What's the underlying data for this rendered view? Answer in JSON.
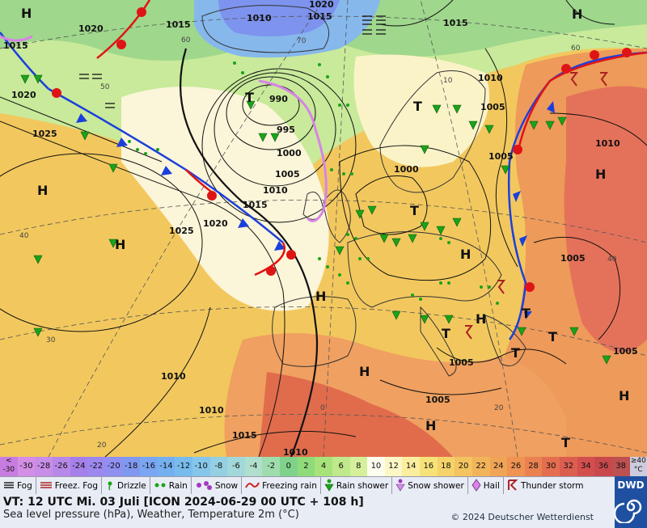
{
  "map": {
    "isobar_labels": [
      "1020",
      "1015",
      "1010",
      "1020",
      "1015",
      "1015",
      "990",
      "995",
      "1000",
      "1005",
      "1010",
      "1015",
      "1020",
      "1025",
      "1025",
      "1020",
      "1015",
      "1010",
      "1005",
      "1000",
      "1005",
      "1010",
      "1005",
      "1005",
      "1005",
      "1010",
      "1010",
      "1015",
      "1010",
      "1005"
    ],
    "pressure_centers": [
      "H",
      "T",
      "T",
      "H",
      "H",
      "H",
      "H",
      "T",
      "H",
      "H",
      "H",
      "T",
      "H",
      "T",
      "T",
      "T",
      "H",
      "T",
      "H"
    ],
    "grid_labels": [
      "60",
      "40",
      "30",
      "20",
      "0",
      "70",
      "50",
      "40",
      "60",
      "20",
      "10"
    ]
  },
  "scale": {
    "cells": [
      "<\n-30",
      "-30",
      "-28",
      "-26",
      "-24",
      "-22",
      "-20",
      "-18",
      "-16",
      "-14",
      "-12",
      "-10",
      "-8",
      "-6",
      "-4",
      "-2",
      "0",
      "2",
      "4",
      "6",
      "8",
      "10",
      "12",
      "14",
      "16",
      "18",
      "20",
      "22",
      "24",
      "26",
      "28",
      "30",
      "32",
      "34",
      "36",
      "38",
      "≥40\n°C"
    ],
    "colors": [
      "#c77de0",
      "#d48ee6",
      "#c88de8",
      "#b888e8",
      "#a680ea",
      "#9c88ef",
      "#8f90f2",
      "#8099f0",
      "#7aa6f2",
      "#74b0f0",
      "#78bcee",
      "#86c6ea",
      "#94cfe2",
      "#a3d8da",
      "#b0e0cd",
      "#9fdcae",
      "#7fd28a",
      "#8fdb7a",
      "#a7e37a",
      "#bfe98a",
      "#d5ef9b",
      "#fffff0",
      "#fdf7c6",
      "#fbee9e",
      "#f7e27a",
      "#f5d36a",
      "#f3c45f",
      "#f2b45a",
      "#f0a456",
      "#ee9352",
      "#ea8150",
      "#e46e4f",
      "#dc5e4f",
      "#d24f4e",
      "#c8484c",
      "#bd5050",
      "#ccccdd"
    ]
  },
  "legend": {
    "items": [
      {
        "icon": "fog-icon",
        "label": "Fog"
      },
      {
        "icon": "freezing-fog-icon",
        "label": "Freez. Fog"
      },
      {
        "icon": "drizzle-icon",
        "label": "Drizzle"
      },
      {
        "icon": "rain-icon",
        "label": "Rain"
      },
      {
        "icon": "snow-icon",
        "label": "Snow"
      },
      {
        "icon": "freezing-rain-icon",
        "label": "Freezing rain"
      },
      {
        "icon": "rain-shower-icon",
        "label": "Rain shower"
      },
      {
        "icon": "snow-shower-icon",
        "label": "Snow shower"
      },
      {
        "icon": "hail-icon",
        "label": "Hail"
      },
      {
        "icon": "thunderstorm-icon",
        "label": "Thunder storm"
      }
    ]
  },
  "footer": {
    "valid_time": "VT: 12 UTC Mi.  03 Juli [ICON 2024-06-29  00 UTC + 108 h]",
    "subtitle": "Sea level pressure (hPa), Weather, Temperature 2m (°C)",
    "copyright": "© 2024 Deutscher Wetterdienst",
    "logo_text": "DWD"
  },
  "colors": {
    "cold_front": "#1b3fdc",
    "warm_front": "#e01414",
    "occlusion": "#d884e6",
    "rain_green": "#1aa31a"
  }
}
